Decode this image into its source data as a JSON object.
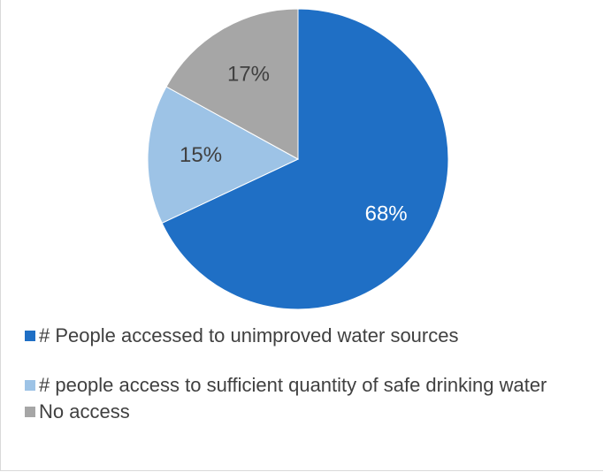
{
  "chart_data": {
    "type": "pie",
    "title": "",
    "slices": [
      {
        "label": "# People accessed to unimproved water sources",
        "value": 68,
        "value_label": "68%",
        "color": "#1F6FC5",
        "text_color": "#ffffff"
      },
      {
        "label": "# people access to sufficient quantity of safe drinking water",
        "value": 15,
        "value_label": "15%",
        "color": "#9DC3E6",
        "text_color": "#404040"
      },
      {
        "label": "No access",
        "value": 17,
        "value_label": "17%",
        "color": "#A6A6A6",
        "text_color": "#404040"
      }
    ],
    "legend_position": "bottom"
  }
}
